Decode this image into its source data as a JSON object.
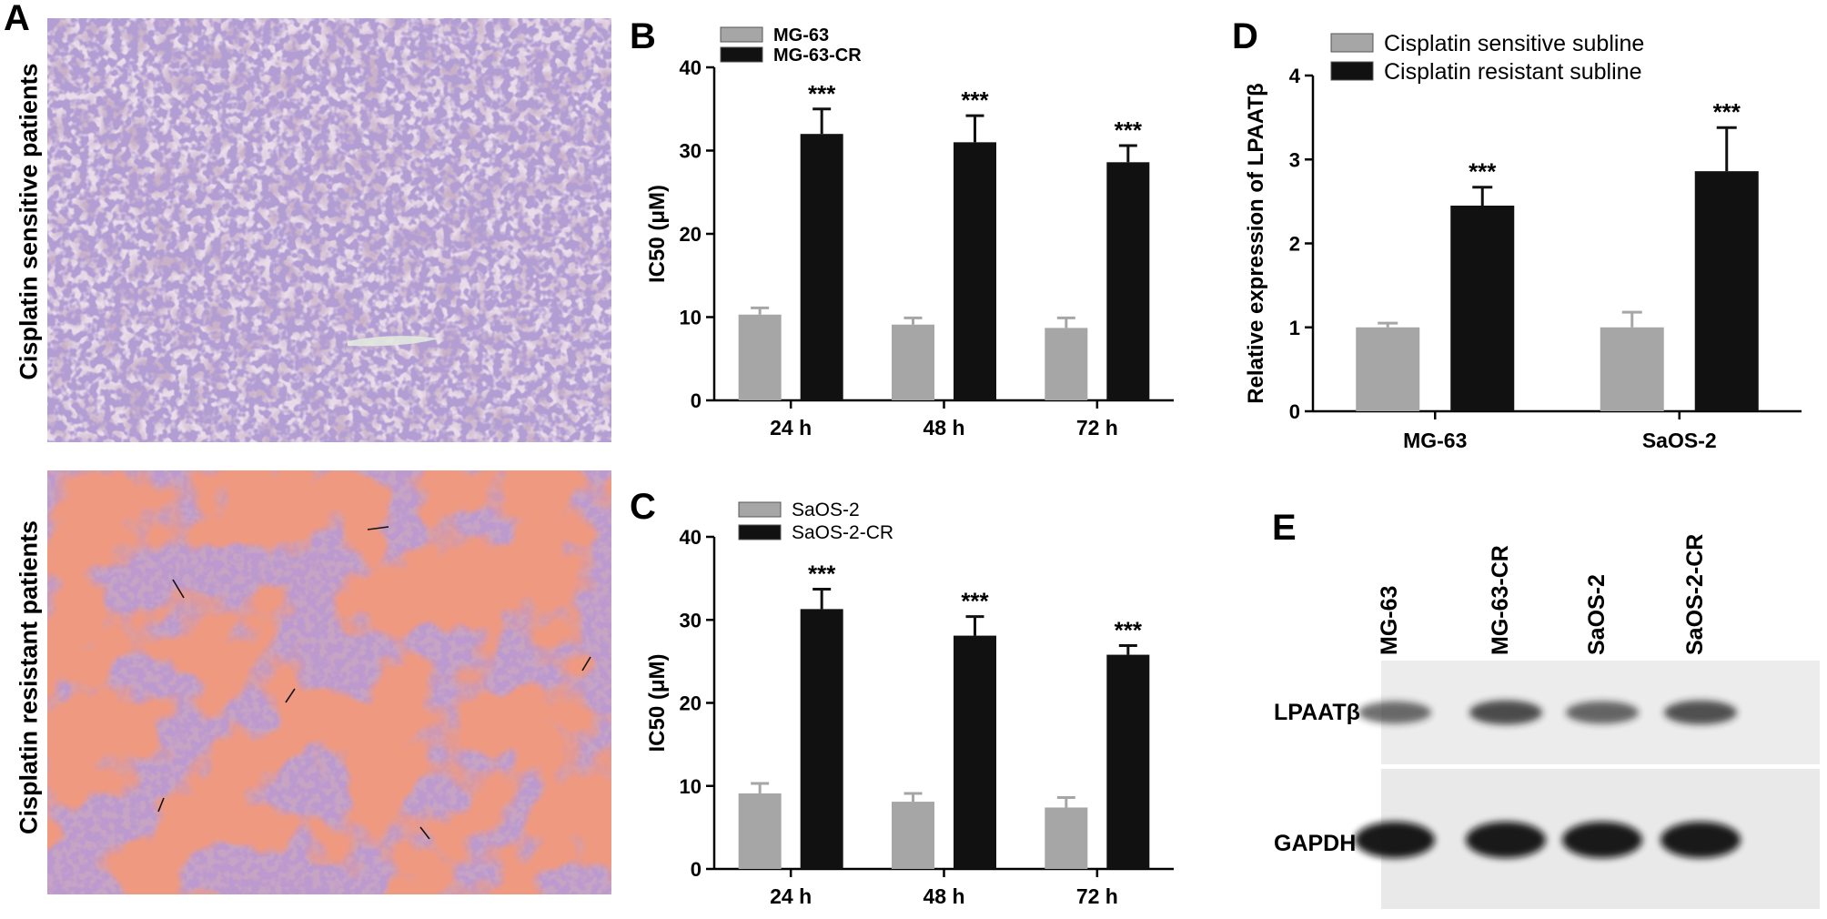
{
  "panel_letters": {
    "a": "A",
    "b": "B",
    "c": "C",
    "d": "D",
    "e": "E"
  },
  "panel_a": {
    "top_label": "Cisplatin sensitive patients",
    "bottom_label": "Cisplatin resistant patients"
  },
  "panel_e": {
    "lane_labels": [
      "MG-63",
      "MG-63-CR",
      "SaOS-2",
      "SaOS-2-CR"
    ],
    "row_labels": [
      "LPAATβ",
      "GAPDH"
    ],
    "lpaat_intensity": [
      0.55,
      0.85,
      0.6,
      0.8
    ],
    "gapdh_intensity": [
      1.0,
      0.95,
      0.95,
      0.95
    ]
  },
  "colors": {
    "sensitive": "#a6a6a6",
    "resistant": "#111111"
  },
  "chart_data": [
    {
      "id": "B",
      "type": "bar",
      "categories": [
        "24 h",
        "48 h",
        "72 h"
      ],
      "series": [
        {
          "name": "MG-63",
          "values": [
            10.3,
            9.1,
            8.7
          ],
          "errors": [
            0.8,
            0.8,
            1.2
          ]
        },
        {
          "name": "MG-63-CR",
          "values": [
            32.0,
            31.0,
            28.6
          ],
          "errors": [
            3.0,
            3.2,
            2.0
          ]
        }
      ],
      "annotations": [
        "***",
        "***",
        "***"
      ],
      "ylabel": "IC50 (μM)",
      "ylim": [
        0,
        40
      ],
      "yticks": [
        0,
        10,
        20,
        30,
        40
      ],
      "legend": "top-left"
    },
    {
      "id": "C",
      "type": "bar",
      "categories": [
        "24 h",
        "48 h",
        "72 h"
      ],
      "series": [
        {
          "name": "SaOS-2",
          "values": [
            9.1,
            8.1,
            7.4
          ],
          "errors": [
            1.2,
            1.0,
            1.2
          ]
        },
        {
          "name": "SaOS-2-CR",
          "values": [
            31.3,
            28.1,
            25.8
          ],
          "errors": [
            2.4,
            2.3,
            1.1
          ]
        }
      ],
      "annotations": [
        "***",
        "***",
        "***"
      ],
      "ylabel": "IC50 (μM)",
      "ylim": [
        0,
        40
      ],
      "yticks": [
        0,
        10,
        20,
        30,
        40
      ],
      "legend": "top-left"
    },
    {
      "id": "D",
      "type": "bar",
      "categories": [
        "MG-63",
        "SaOS-2"
      ],
      "series": [
        {
          "name": "Cisplatin sensitive subline",
          "values": [
            1.0,
            1.0
          ],
          "errors": [
            0.05,
            0.18
          ]
        },
        {
          "name": "Cisplatin resistant subline",
          "values": [
            2.45,
            2.86
          ],
          "errors": [
            0.22,
            0.52
          ]
        }
      ],
      "annotations": [
        "***",
        "***"
      ],
      "ylabel": "Relative expression of LPAATβ",
      "ylim": [
        0,
        4
      ],
      "yticks": [
        0,
        1,
        2,
        3,
        4
      ],
      "legend": "top-left"
    }
  ]
}
